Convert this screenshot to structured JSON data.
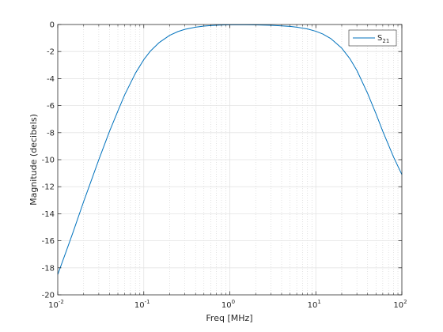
{
  "chart_data": {
    "type": "line",
    "title": "",
    "xlabel": "Freq [MHz]",
    "ylabel": "Magnitude (decibels)",
    "xscale": "log",
    "xlim": [
      0.01,
      100
    ],
    "ylim": [
      -20,
      0
    ],
    "grid": true,
    "minor_grid": true,
    "legend_position": "top-right",
    "x_ticks": [
      {
        "value": 0.01,
        "base": "10",
        "exp": "-2"
      },
      {
        "value": 0.1,
        "base": "10",
        "exp": "-1"
      },
      {
        "value": 1,
        "base": "10",
        "exp": "0"
      },
      {
        "value": 10,
        "base": "10",
        "exp": "1"
      },
      {
        "value": 100,
        "base": "10",
        "exp": "2"
      }
    ],
    "y_ticks": [
      {
        "value": 0,
        "label": "0"
      },
      {
        "value": -2,
        "label": "-2"
      },
      {
        "value": -4,
        "label": "-4"
      },
      {
        "value": -6,
        "label": "-6"
      },
      {
        "value": -8,
        "label": "-8"
      },
      {
        "value": -10,
        "label": "-10"
      },
      {
        "value": -12,
        "label": "-12"
      },
      {
        "value": -14,
        "label": "-14"
      },
      {
        "value": -16,
        "label": "-16"
      },
      {
        "value": -18,
        "label": "-18"
      },
      {
        "value": -20,
        "label": "-20"
      }
    ],
    "series": [
      {
        "name": "S21",
        "legend_main": "S",
        "legend_sub": "21",
        "color": "#0072bd",
        "x": [
          0.01,
          0.0125,
          0.015,
          0.02,
          0.025,
          0.03,
          0.04,
          0.05,
          0.06,
          0.08,
          0.1,
          0.12,
          0.15,
          0.2,
          0.25,
          0.3,
          0.4,
          0.5,
          0.6,
          0.8,
          1,
          1.5,
          2,
          3,
          4,
          5,
          6,
          8,
          10,
          12,
          15,
          20,
          25,
          30,
          40,
          50,
          60,
          80,
          100
        ],
        "y": [
          -18.5,
          -16.8,
          -15.4,
          -13.1,
          -11.4,
          -10.0,
          -7.9,
          -6.4,
          -5.2,
          -3.6,
          -2.6,
          -1.95,
          -1.35,
          -0.8,
          -0.52,
          -0.36,
          -0.2,
          -0.12,
          -0.08,
          -0.04,
          -0.02,
          -0.02,
          -0.03,
          -0.06,
          -0.1,
          -0.14,
          -0.2,
          -0.33,
          -0.5,
          -0.7,
          -1.05,
          -1.75,
          -2.55,
          -3.4,
          -5.1,
          -6.6,
          -7.9,
          -9.8,
          -11.1
        ]
      }
    ]
  }
}
